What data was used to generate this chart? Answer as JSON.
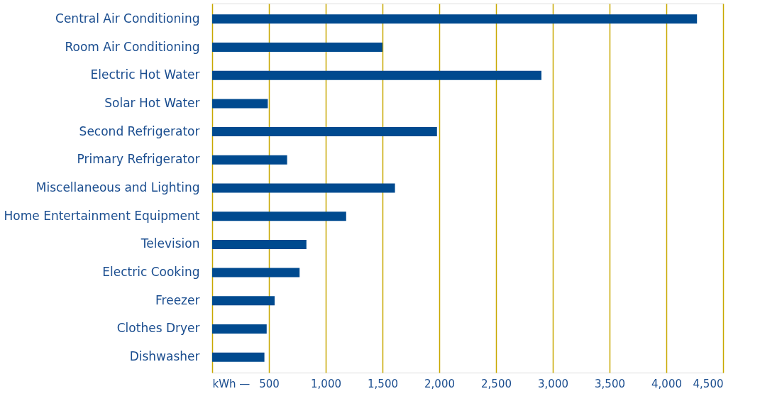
{
  "chart_data": {
    "type": "bar",
    "orientation": "horizontal",
    "categories": [
      "Central Air Conditioning",
      "Room Air Conditioning",
      null,
      "Electric Hot Water",
      "Solar Hot Water",
      null,
      "Second Refrigerator",
      "Primary Refrigerator",
      null,
      "Miscellaneous and Lighting",
      null,
      "Home Entertainment Equipment",
      "Television",
      null,
      "Electric Cooking",
      "Freezer",
      "Clothes Dryer",
      "Dishwasher"
    ],
    "values": [
      4270,
      1500,
      null,
      2900,
      490,
      null,
      1980,
      660,
      null,
      1610,
      null,
      1180,
      830,
      null,
      770,
      550,
      480,
      460
    ],
    "color": "#004a8f",
    "xlim": [
      0,
      4500
    ],
    "xticks": [
      {
        "value": 0,
        "label": "kWh —"
      },
      {
        "value": 500,
        "label": "500"
      },
      {
        "value": 1000,
        "label": "1,000"
      },
      {
        "value": 1500,
        "label": "1,500"
      },
      {
        "value": 2000,
        "label": "2,000"
      },
      {
        "value": 2500,
        "label": "2,500"
      },
      {
        "value": 3000,
        "label": "3,000"
      },
      {
        "value": 3500,
        "label": "3,500"
      },
      {
        "value": 4000,
        "label": "4,000"
      },
      {
        "value": 4500,
        "label": "4,500"
      }
    ],
    "grid": "x"
  }
}
